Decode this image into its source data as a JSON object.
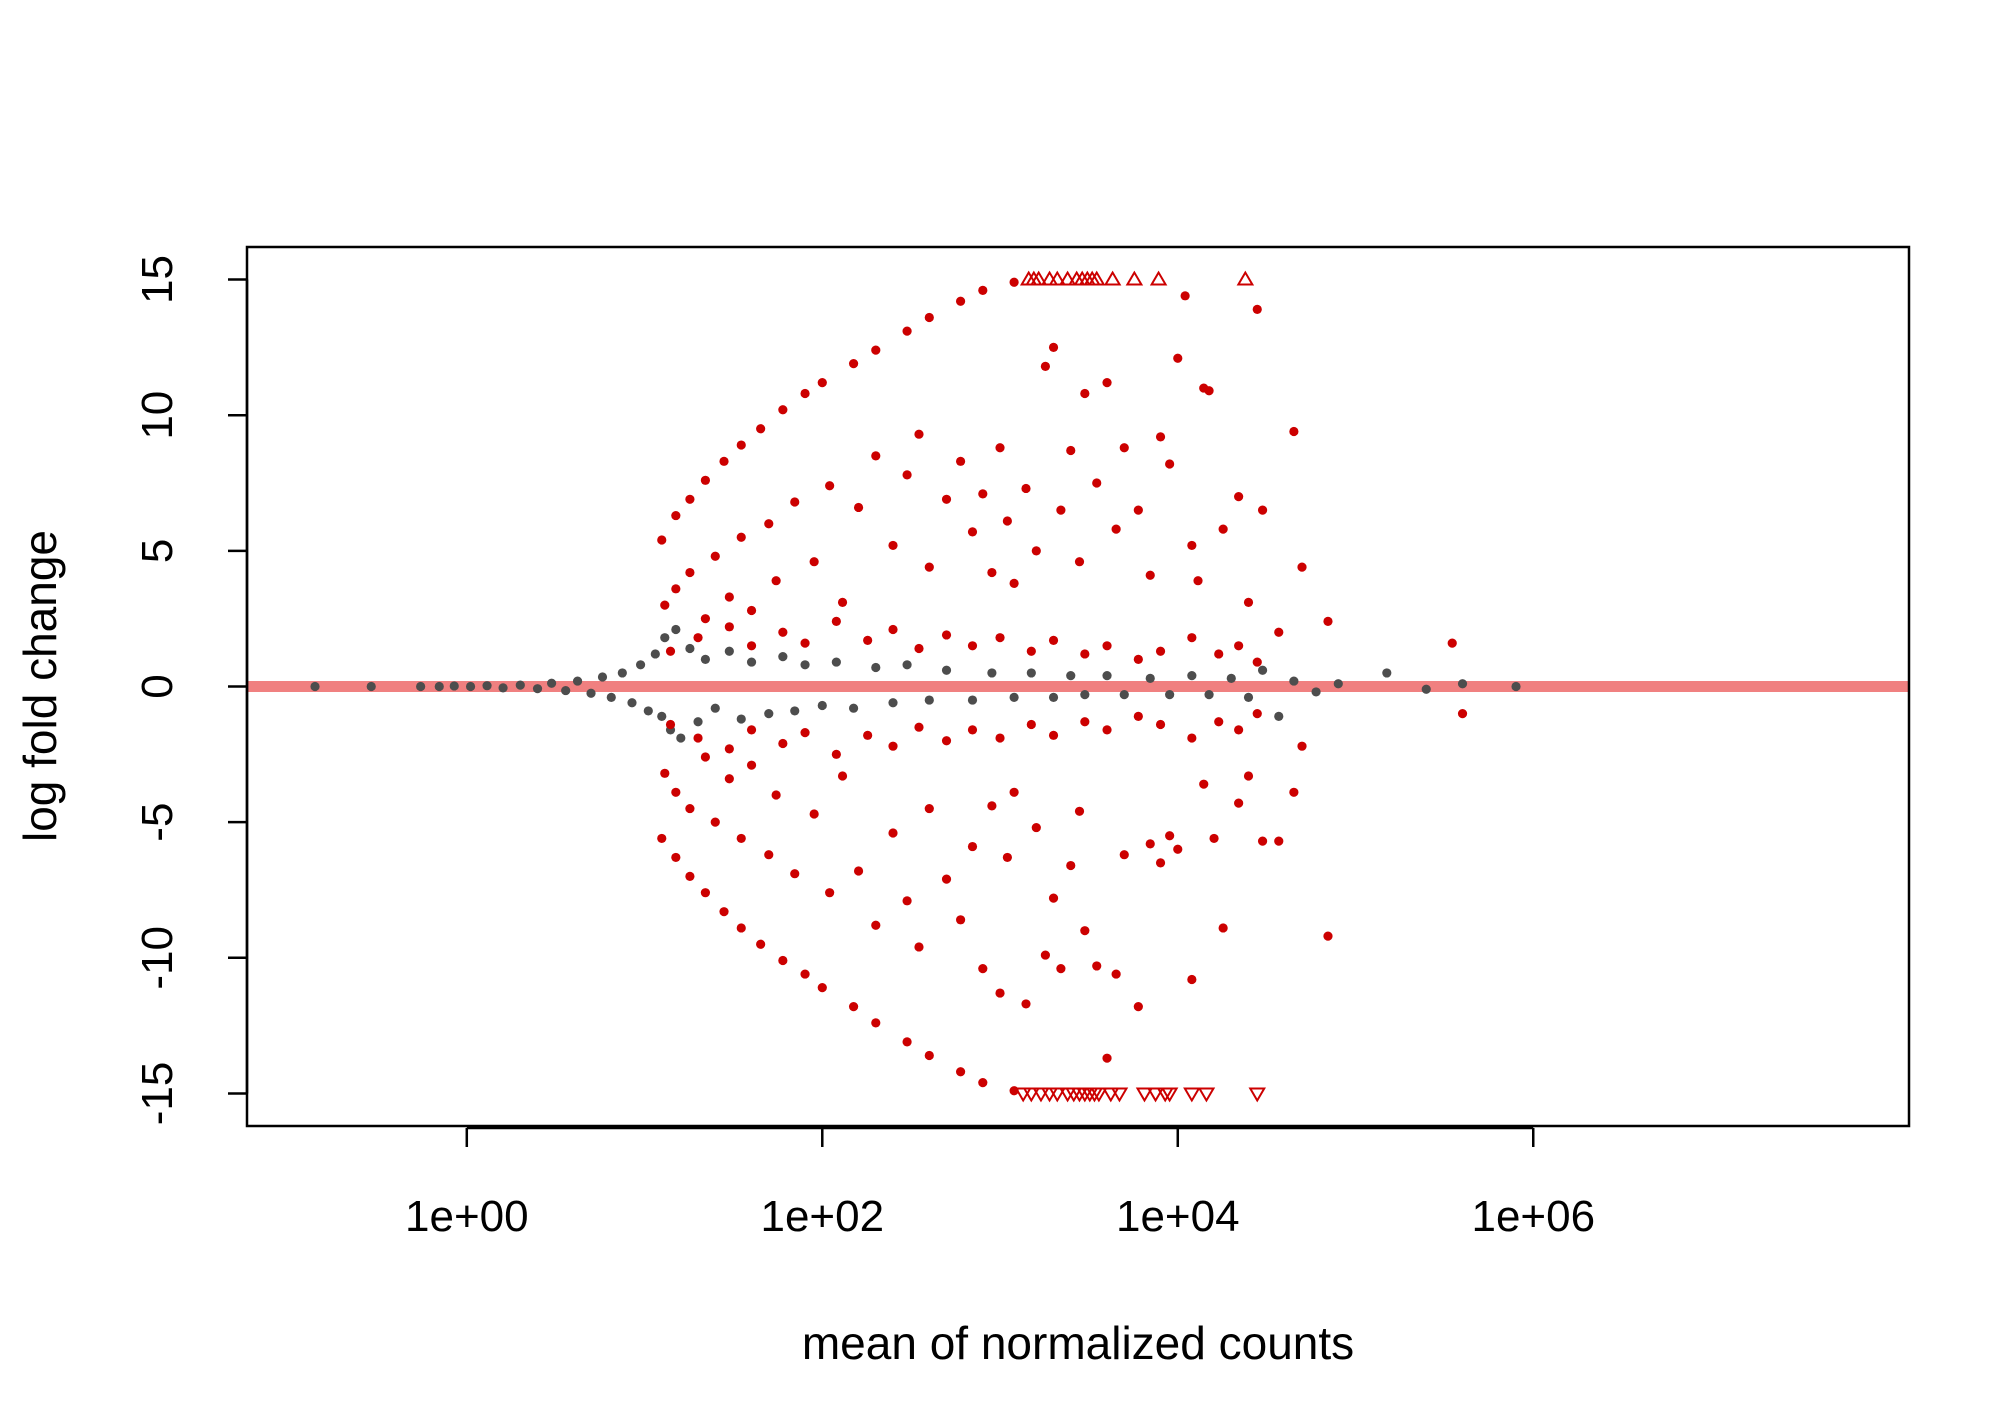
{
  "chart_data": {
    "type": "scatter",
    "title": "",
    "xlabel": "mean of normalized counts",
    "ylabel": "log fold change",
    "x_scale": "log10",
    "xlim": [
      0.058,
      130000000
    ],
    "ylim": [
      -16.2,
      16.2
    ],
    "x_ticks": [
      {
        "value": 1,
        "label": "1e+00"
      },
      {
        "value": 100,
        "label": "1e+02"
      },
      {
        "value": 10000,
        "label": "1e+04"
      },
      {
        "value": 1000000,
        "label": "1e+06"
      }
    ],
    "y_ticks": [
      {
        "value": 15,
        "label": "15"
      },
      {
        "value": 10,
        "label": "10"
      },
      {
        "value": 5,
        "label": "5"
      },
      {
        "value": 0,
        "label": "0"
      },
      {
        "value": -5,
        "label": "-5"
      },
      {
        "value": -10,
        "label": "-10"
      },
      {
        "value": -15,
        "label": "-15"
      }
    ],
    "reference_line": {
      "y": 0,
      "color": "#F08080"
    },
    "colors": {
      "significant": "#CC0000",
      "not_significant": "#4D4D4D",
      "frame": "#000000"
    },
    "series": [
      {
        "key": "not_significant",
        "marker": "dot",
        "color": "#4D4D4D",
        "points": [
          [
            0.14,
            0
          ],
          [
            0.29,
            0
          ],
          [
            0.55,
            0
          ],
          [
            0.7,
            0
          ],
          [
            0.85,
            0.02
          ],
          [
            1.05,
            0
          ],
          [
            1.3,
            0.03
          ],
          [
            1.6,
            -0.05
          ],
          [
            2.0,
            0.05
          ],
          [
            2.5,
            -0.08
          ],
          [
            3.0,
            0.12
          ],
          [
            3.6,
            -0.15
          ],
          [
            4.2,
            0.2
          ],
          [
            5.0,
            -0.25
          ],
          [
            5.8,
            0.35
          ],
          [
            6.5,
            -0.4
          ],
          [
            7.5,
            0.5
          ],
          [
            8.5,
            -0.6
          ],
          [
            9.5,
            0.8
          ],
          [
            10.5,
            -0.9
          ],
          [
            11.5,
            1.2
          ],
          [
            12.5,
            -1.1
          ],
          [
            13,
            1.8
          ],
          [
            14,
            -1.6
          ],
          [
            15,
            2.1
          ],
          [
            16,
            -1.9
          ],
          [
            18,
            1.4
          ],
          [
            20,
            -1.3
          ],
          [
            22,
            1.0
          ],
          [
            25,
            -0.8
          ],
          [
            30,
            1.3
          ],
          [
            35,
            -1.2
          ],
          [
            40,
            0.9
          ],
          [
            50,
            -1.0
          ],
          [
            60,
            1.1
          ],
          [
            70,
            -0.9
          ],
          [
            80,
            0.8
          ],
          [
            100,
            -0.7
          ],
          [
            120,
            0.9
          ],
          [
            150,
            -0.8
          ],
          [
            200,
            0.7
          ],
          [
            250,
            -0.6
          ],
          [
            300,
            0.8
          ],
          [
            400,
            -0.5
          ],
          [
            500,
            0.6
          ],
          [
            700,
            -0.5
          ],
          [
            900,
            0.5
          ],
          [
            1200,
            -0.4
          ],
          [
            1500,
            0.5
          ],
          [
            2000,
            -0.4
          ],
          [
            2500,
            0.4
          ],
          [
            3000,
            -0.3
          ],
          [
            4000,
            0.4
          ],
          [
            5000,
            -0.3
          ],
          [
            7000,
            0.3
          ],
          [
            9000,
            -0.3
          ],
          [
            12000,
            0.4
          ],
          [
            15000,
            -0.3
          ],
          [
            20000,
            0.3
          ],
          [
            25000,
            -0.4
          ],
          [
            30000,
            0.6
          ],
          [
            37000,
            -1.1
          ],
          [
            45000,
            0.2
          ],
          [
            60000,
            -0.2
          ],
          [
            80000,
            0.1
          ],
          [
            150000,
            0.5
          ],
          [
            250000,
            -0.1
          ],
          [
            400000,
            0.1
          ],
          [
            800000,
            0
          ]
        ]
      },
      {
        "key": "significant",
        "marker": "dot",
        "color": "#CC0000",
        "points": [
          [
            12.5,
            5.4
          ],
          [
            15,
            6.3
          ],
          [
            18,
            6.9
          ],
          [
            22,
            7.6
          ],
          [
            28,
            8.3
          ],
          [
            35,
            8.9
          ],
          [
            45,
            9.5
          ],
          [
            60,
            10.2
          ],
          [
            80,
            10.8
          ],
          [
            100,
            11.2
          ],
          [
            150,
            11.9
          ],
          [
            200,
            12.4
          ],
          [
            300,
            13.1
          ],
          [
            400,
            13.6
          ],
          [
            600,
            14.2
          ],
          [
            800,
            14.6
          ],
          [
            1200,
            14.9
          ],
          [
            12.5,
            -5.6
          ],
          [
            15,
            -6.3
          ],
          [
            18,
            -7.0
          ],
          [
            22,
            -7.6
          ],
          [
            28,
            -8.3
          ],
          [
            35,
            -8.9
          ],
          [
            45,
            -9.5
          ],
          [
            60,
            -10.1
          ],
          [
            80,
            -10.6
          ],
          [
            100,
            -11.1
          ],
          [
            150,
            -11.8
          ],
          [
            200,
            -12.4
          ],
          [
            300,
            -13.1
          ],
          [
            400,
            -13.6
          ],
          [
            600,
            -14.2
          ],
          [
            800,
            -14.6
          ],
          [
            1200,
            -14.9
          ],
          [
            13,
            3.0
          ],
          [
            15,
            3.6
          ],
          [
            18,
            4.2
          ],
          [
            22,
            2.5
          ],
          [
            25,
            4.8
          ],
          [
            30,
            3.3
          ],
          [
            35,
            5.5
          ],
          [
            40,
            2.8
          ],
          [
            50,
            6.0
          ],
          [
            55,
            3.9
          ],
          [
            70,
            6.8
          ],
          [
            90,
            4.6
          ],
          [
            110,
            7.4
          ],
          [
            130,
            3.1
          ],
          [
            160,
            6.6
          ],
          [
            200,
            8.5
          ],
          [
            250,
            5.2
          ],
          [
            300,
            7.8
          ],
          [
            350,
            9.3
          ],
          [
            400,
            4.4
          ],
          [
            500,
            6.9
          ],
          [
            600,
            8.3
          ],
          [
            700,
            5.7
          ],
          [
            800,
            7.1
          ],
          [
            900,
            4.2
          ],
          [
            1000,
            8.8
          ],
          [
            1100,
            6.1
          ],
          [
            1200,
            3.8
          ],
          [
            1400,
            7.3
          ],
          [
            1600,
            5.0
          ],
          [
            1800,
            11.8
          ],
          [
            2000,
            12.5
          ],
          [
            2200,
            6.5
          ],
          [
            2500,
            8.7
          ],
          [
            2800,
            4.6
          ],
          [
            3000,
            10.8
          ],
          [
            3500,
            7.5
          ],
          [
            4000,
            11.2
          ],
          [
            4500,
            5.8
          ],
          [
            5000,
            8.8
          ],
          [
            6000,
            6.5
          ],
          [
            7000,
            4.1
          ],
          [
            8000,
            9.2
          ],
          [
            9000,
            8.2
          ],
          [
            10000,
            12.1
          ],
          [
            11000,
            14.4
          ],
          [
            12000,
            5.2
          ],
          [
            13000,
            3.9
          ],
          [
            14000,
            11.0
          ],
          [
            15000,
            10.9
          ],
          [
            18000,
            5.8
          ],
          [
            22000,
            7.0
          ],
          [
            25000,
            3.1
          ],
          [
            28000,
            13.9
          ],
          [
            30000,
            6.5
          ],
          [
            37000,
            2.0
          ],
          [
            45000,
            9.4
          ],
          [
            50000,
            4.4
          ],
          [
            70000,
            2.4
          ],
          [
            350000,
            1.6
          ],
          [
            14,
            1.3
          ],
          [
            20,
            1.8
          ],
          [
            30,
            2.2
          ],
          [
            40,
            1.5
          ],
          [
            60,
            2.0
          ],
          [
            80,
            1.6
          ],
          [
            120,
            2.4
          ],
          [
            180,
            1.7
          ],
          [
            250,
            2.1
          ],
          [
            350,
            1.4
          ],
          [
            500,
            1.9
          ],
          [
            700,
            1.5
          ],
          [
            1000,
            1.8
          ],
          [
            1500,
            1.3
          ],
          [
            2000,
            1.7
          ],
          [
            3000,
            1.2
          ],
          [
            4000,
            1.5
          ],
          [
            6000,
            1.0
          ],
          [
            8000,
            1.3
          ],
          [
            12000,
            1.8
          ],
          [
            17000,
            1.2
          ],
          [
            22000,
            1.5
          ],
          [
            28000,
            0.9
          ],
          [
            13,
            -3.2
          ],
          [
            15,
            -3.9
          ],
          [
            18,
            -4.5
          ],
          [
            22,
            -2.6
          ],
          [
            25,
            -5.0
          ],
          [
            30,
            -3.4
          ],
          [
            35,
            -5.6
          ],
          [
            40,
            -2.9
          ],
          [
            50,
            -6.2
          ],
          [
            55,
            -4.0
          ],
          [
            70,
            -6.9
          ],
          [
            90,
            -4.7
          ],
          [
            110,
            -7.6
          ],
          [
            130,
            -3.3
          ],
          [
            160,
            -6.8
          ],
          [
            200,
            -8.8
          ],
          [
            250,
            -5.4
          ],
          [
            300,
            -7.9
          ],
          [
            350,
            -9.6
          ],
          [
            400,
            -4.5
          ],
          [
            500,
            -7.1
          ],
          [
            600,
            -8.6
          ],
          [
            700,
            -5.9
          ],
          [
            800,
            -10.4
          ],
          [
            900,
            -4.4
          ],
          [
            1000,
            -11.3
          ],
          [
            1100,
            -6.3
          ],
          [
            1200,
            -3.9
          ],
          [
            1400,
            -11.7
          ],
          [
            1600,
            -5.2
          ],
          [
            1800,
            -9.9
          ],
          [
            2000,
            -7.8
          ],
          [
            2200,
            -10.4
          ],
          [
            2500,
            -6.6
          ],
          [
            2800,
            -4.6
          ],
          [
            3000,
            -9.0
          ],
          [
            3500,
            -10.3
          ],
          [
            4000,
            -13.7
          ],
          [
            4500,
            -10.6
          ],
          [
            5000,
            -6.2
          ],
          [
            6000,
            -11.8
          ],
          [
            7000,
            -5.8
          ],
          [
            8000,
            -6.5
          ],
          [
            9000,
            -5.5
          ],
          [
            10000,
            -6.0
          ],
          [
            12000,
            -10.8
          ],
          [
            14000,
            -3.6
          ],
          [
            16000,
            -5.6
          ],
          [
            18000,
            -8.9
          ],
          [
            22000,
            -4.3
          ],
          [
            25000,
            -3.3
          ],
          [
            30000,
            -5.7
          ],
          [
            37000,
            -5.7
          ],
          [
            45000,
            -3.9
          ],
          [
            50000,
            -2.2
          ],
          [
            70000,
            -9.2
          ],
          [
            400000,
            -1.0
          ],
          [
            14,
            -1.4
          ],
          [
            20,
            -1.9
          ],
          [
            30,
            -2.3
          ],
          [
            40,
            -1.6
          ],
          [
            60,
            -2.1
          ],
          [
            80,
            -1.7
          ],
          [
            120,
            -2.5
          ],
          [
            180,
            -1.8
          ],
          [
            250,
            -2.2
          ],
          [
            350,
            -1.5
          ],
          [
            500,
            -2.0
          ],
          [
            700,
            -1.6
          ],
          [
            1000,
            -1.9
          ],
          [
            1500,
            -1.4
          ],
          [
            2000,
            -1.8
          ],
          [
            3000,
            -1.3
          ],
          [
            4000,
            -1.6
          ],
          [
            6000,
            -1.1
          ],
          [
            8000,
            -1.4
          ],
          [
            12000,
            -1.9
          ],
          [
            17000,
            -1.3
          ],
          [
            22000,
            -1.6
          ],
          [
            28000,
            -1.0
          ]
        ]
      },
      {
        "key": "clipped_up",
        "marker": "triangle-up",
        "color": "#CC0000",
        "points": [
          [
            1450,
            15
          ],
          [
            1550,
            15
          ],
          [
            1650,
            15
          ],
          [
            1900,
            15
          ],
          [
            2100,
            15
          ],
          [
            2400,
            15
          ],
          [
            2700,
            15
          ],
          [
            2900,
            15
          ],
          [
            3100,
            15
          ],
          [
            3300,
            15
          ],
          [
            3500,
            15
          ],
          [
            4300,
            15
          ],
          [
            5700,
            15
          ],
          [
            7800,
            15
          ],
          [
            24000,
            15
          ]
        ]
      },
      {
        "key": "clipped_down",
        "marker": "triangle-down",
        "color": "#CC0000",
        "points": [
          [
            1350,
            -15
          ],
          [
            1500,
            -15
          ],
          [
            1700,
            -15
          ],
          [
            1900,
            -15
          ],
          [
            2100,
            -15
          ],
          [
            2400,
            -15
          ],
          [
            2600,
            -15
          ],
          [
            2800,
            -15
          ],
          [
            3000,
            -15
          ],
          [
            3200,
            -15
          ],
          [
            3400,
            -15
          ],
          [
            3600,
            -15
          ],
          [
            4200,
            -15
          ],
          [
            4700,
            -15
          ],
          [
            6500,
            -15
          ],
          [
            7500,
            -15
          ],
          [
            8500,
            -15
          ],
          [
            9000,
            -15
          ],
          [
            12000,
            -15
          ],
          [
            14500,
            -15
          ],
          [
            28000,
            -15
          ]
        ]
      }
    ]
  }
}
